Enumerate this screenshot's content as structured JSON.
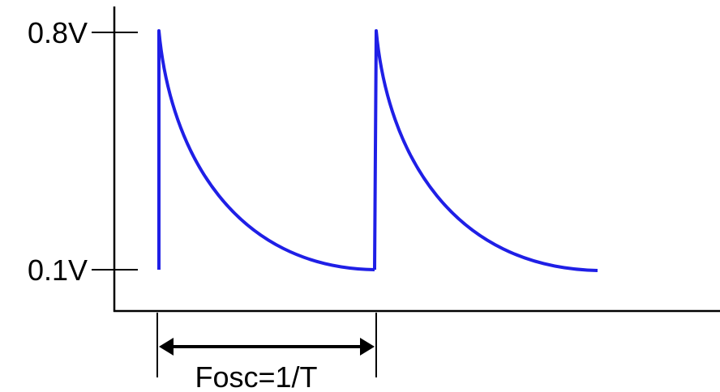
{
  "diagram": {
    "y_labels": {
      "high": "0.8V",
      "low": "0.1V"
    },
    "period_label": "Fosc=1/T",
    "colors": {
      "waveform": "#1f1fe6",
      "axes": "#000000"
    }
  }
}
